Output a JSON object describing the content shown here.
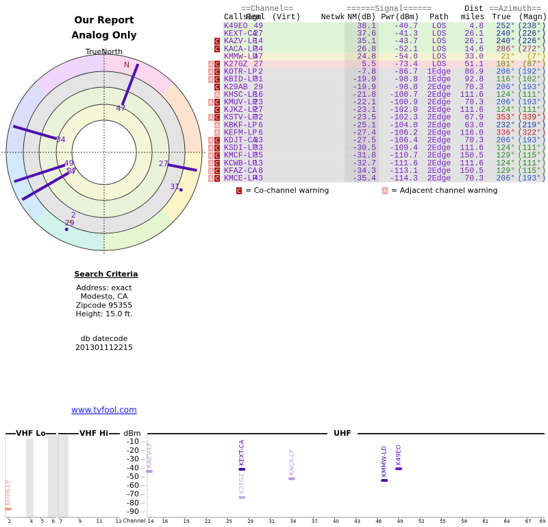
{
  "header": {
    "title": "Our Report",
    "subtitle": "Analog Only",
    "compass": "TrueNorth",
    "north": "N"
  },
  "polar": {
    "points": [
      {
        "label": "49",
        "az": 252,
        "nm": 38.1
      },
      {
        "label": "27",
        "az": 240,
        "nm": 37.6
      },
      {
        "label": "14",
        "az": 240,
        "nm": 35.1
      },
      {
        "label": "34",
        "az": 286,
        "nm": 26.8
      },
      {
        "label": "47",
        "az": 21,
        "nm": 24.8
      },
      {
        "label": "27",
        "az": 101,
        "nm": 5.5
      },
      {
        "label": "2",
        "az": 206,
        "nm": -7.8
      },
      {
        "label": "31",
        "az": 116,
        "nm": -19.9
      },
      {
        "label": "29",
        "az": 206,
        "nm": -19.9
      }
    ]
  },
  "table": {
    "group_headers": [
      "==Channel==",
      "======Signal======",
      "Dist",
      "==Azimuth=="
    ],
    "columns": [
      "Callsign",
      "Real",
      "(Virt)",
      "Netwk",
      "NM(dB)",
      "Pwr(dBm)",
      "Path",
      "miles",
      "True",
      "(Magn)"
    ],
    "rows": [
      {
        "bg": "#dff3d6",
        "az_color": "#1a3aa0",
        "warn": [],
        "cells": [
          "K49EO",
          "49",
          "38.1",
          "-40.7",
          "LOS",
          "4.8",
          "252°",
          "(238°)"
        ]
      },
      {
        "bg": "#dff3d6",
        "az_color": "#1a2a90",
        "warn": [],
        "cells": [
          "KEXT-CA",
          "27",
          "37.6",
          "-41.3",
          "LOS",
          "26.1",
          "240°",
          "(226°)"
        ]
      },
      {
        "bg": "#dff3d6",
        "az_color": "#1a2a90",
        "warn": [
          "C"
        ],
        "cells": [
          "KAZV-LP",
          "14",
          "35.1",
          "-43.7",
          "LOS",
          "26.1",
          "240°",
          "(226°)"
        ]
      },
      {
        "bg": "#dff3d6",
        "az_color": "#a0306a",
        "warn": [
          "C"
        ],
        "cells": [
          "KACA-LP",
          "34",
          "26.8",
          "-52.1",
          "LOS",
          "14.6",
          "286°",
          "(272°)"
        ]
      },
      {
        "bg": "#f4f4d2",
        "az_color": "#c08a00",
        "warn": [],
        "cells": [
          "KMMW-LD",
          "47",
          "24.8",
          "-54.0",
          "LOS",
          "33.0",
          "21°",
          "(7°)"
        ]
      },
      {
        "bg": "#f8dcdc",
        "az_color": "#6a8a00",
        "warn": [
          "A",
          "C"
        ],
        "cells": [
          "K27GZ",
          "27",
          "5.5",
          "-73.4",
          "LOS",
          "51.1",
          "101°",
          "(87°)"
        ]
      },
      {
        "bg": "#e2e2e2",
        "az_color": "#2a5ac0",
        "warn": [
          "A",
          "C"
        ],
        "cells": [
          "KOTR-LP",
          "2",
          "-7.8",
          "-86.7",
          "1Edge",
          "86.9",
          "206°",
          "(192°)"
        ]
      },
      {
        "bg": "#e2e2e2",
        "az_color": "#3a8a2a",
        "warn": [
          "A",
          "C"
        ],
        "cells": [
          "KBID-LP",
          "31",
          "-19.9",
          "-98.8",
          "1Edge",
          "92.8",
          "116°",
          "(102°)"
        ]
      },
      {
        "bg": "#e2e2e2",
        "az_color": "#2a5ac0",
        "warn": [
          "C"
        ],
        "cells": [
          "K29AB",
          "29",
          "-19.9",
          "-98.8",
          "2Edge",
          "70.3",
          "206°",
          "(193°)"
        ]
      },
      {
        "bg": "#e2e2e2",
        "az_color": "#2a8a2a",
        "warn": [
          "A"
        ],
        "cells": [
          "KHSC-LP",
          "16",
          "-21.8",
          "-100.7",
          "2Edge",
          "111.6",
          "124°",
          "(111°)"
        ]
      },
      {
        "bg": "#e2e2e2",
        "az_color": "#2a5ac0",
        "warn": [
          "A",
          "C"
        ],
        "cells": [
          "KMUV-LP",
          "23",
          "-22.1",
          "-100.9",
          "2Edge",
          "70.3",
          "206°",
          "(193°)"
        ]
      },
      {
        "bg": "#e2e2e2",
        "az_color": "#2a8a2a",
        "warn": [
          "C"
        ],
        "cells": [
          "KJKZ-LP",
          "27",
          "-23.1",
          "-102.0",
          "2Edge",
          "111.6",
          "124°",
          "(111°)"
        ]
      },
      {
        "bg": "#e2e2e2",
        "az_color": "#c01010",
        "warn": [
          "A",
          "C"
        ],
        "cells": [
          "KSTV-LP",
          "32",
          "-23.5",
          "-102.3",
          "2Edge",
          "67.9",
          "353°",
          "(339°)"
        ]
      },
      {
        "bg": "#e2e2e2",
        "az_color": "#1a3aa0",
        "warn": [
          "A"
        ],
        "cells": [
          "KBKF-LP",
          "6",
          "-25.1",
          "-104.0",
          "2Edge",
          "63.0",
          "232°",
          "(219°)"
        ]
      },
      {
        "bg": "#e2e2e2",
        "az_color": "#c02040",
        "warn": [
          "A"
        ],
        "cells": [
          "KEFM-LP",
          "6",
          "-27.4",
          "-106.2",
          "2Edge",
          "116.0",
          "336°",
          "(322°)"
        ]
      },
      {
        "bg": "#e2e2e2",
        "az_color": "#2a5ac0",
        "warn": [
          "A",
          "C"
        ],
        "cells": [
          "KDJT-CA",
          "33",
          "-27.5",
          "-106.4",
          "2Edge",
          "70.3",
          "206°",
          "(193°)"
        ]
      },
      {
        "bg": "#e2e2e2",
        "az_color": "#2a8a2a",
        "warn": [
          "A",
          "C"
        ],
        "cells": [
          "KSDI-LP",
          "33",
          "-30.5",
          "-109.4",
          "2Edge",
          "111.6",
          "124°",
          "(111°)"
        ]
      },
      {
        "bg": "#e2e2e2",
        "az_color": "#2a8a2a",
        "warn": [
          "A",
          "C"
        ],
        "cells": [
          "KMCF-LP",
          "35",
          "-31.8",
          "-110.7",
          "2Edge",
          "150.5",
          "129°",
          "(115°)"
        ]
      },
      {
        "bg": "#e2e2e2",
        "az_color": "#2a8a2a",
        "warn": [
          "A",
          "C"
        ],
        "cells": [
          "KCWB-LP",
          "13",
          "-32.7",
          "-111.6",
          "2Edge",
          "111.6",
          "124°",
          "(111°)"
        ]
      },
      {
        "bg": "#e2e2e2",
        "az_color": "#2a8a2a",
        "warn": [
          "A",
          "C"
        ],
        "cells": [
          "KFAZ-CA",
          "8",
          "-34.3",
          "-113.1",
          "2Edge",
          "150.5",
          "129°",
          "(115°)"
        ]
      },
      {
        "bg": "#e2e2e2",
        "az_color": "#2a5ac0",
        "warn": [
          "A",
          "C"
        ],
        "cells": [
          "KMCE-LP",
          "43",
          "-35.4",
          "-114.3",
          "2Edge",
          "70.3",
          "206°",
          "(193°)"
        ]
      }
    ]
  },
  "legend": [
    {
      "icon": "C",
      "text": "= Co-channel warning"
    },
    {
      "icon": "A",
      "text": "= Adjacent channel warning"
    }
  ],
  "criteria": {
    "title": "Search Criteria",
    "lines": [
      "Address: exact",
      "Modesto, CA",
      "Zipcode 95355",
      "Height: 15.0 ft."
    ],
    "db_label": "db datecode",
    "db_value": "201301112215"
  },
  "link": "www.tvfool.com",
  "spectrum": {
    "bands": [
      "VHF Lo",
      "VHF Hi",
      "UHF"
    ],
    "ylabel": "dBm",
    "xlabel": "Channel",
    "ylim": [
      -90,
      -10
    ],
    "yticks": [
      -10,
      -20,
      -30,
      -40,
      -50,
      -60,
      -70,
      -80,
      -90
    ],
    "xticks": [
      2,
      4,
      5,
      6,
      7,
      9,
      11,
      13,
      14,
      16,
      19,
      22,
      25,
      28,
      31,
      34,
      37,
      40,
      43,
      46,
      49,
      52,
      55,
      58,
      61,
      64,
      67,
      69
    ],
    "stations": [
      {
        "name": "KOTR-LP",
        "channel": 2,
        "dbm": -86.7,
        "color": "#e89a88"
      },
      {
        "name": "KAZV-LP",
        "channel": 14,
        "dbm": -43.7,
        "color": "#b898e4"
      },
      {
        "name": "KEXT-CA",
        "channel": 27,
        "dbm": -41.3,
        "color": "#4a0c9a"
      },
      {
        "name": "K27GZ",
        "channel": 27,
        "dbm": -73.4,
        "color": "#c6aaea"
      },
      {
        "name": "KACA-LP",
        "channel": 34,
        "dbm": -52.1,
        "color": "#b898e4"
      },
      {
        "name": "KMMW-LD",
        "channel": 47,
        "dbm": -54.0,
        "color": "#4a0c9a"
      },
      {
        "name": "K49EO",
        "channel": 49,
        "dbm": -40.7,
        "color": "#6a12c8"
      }
    ]
  }
}
